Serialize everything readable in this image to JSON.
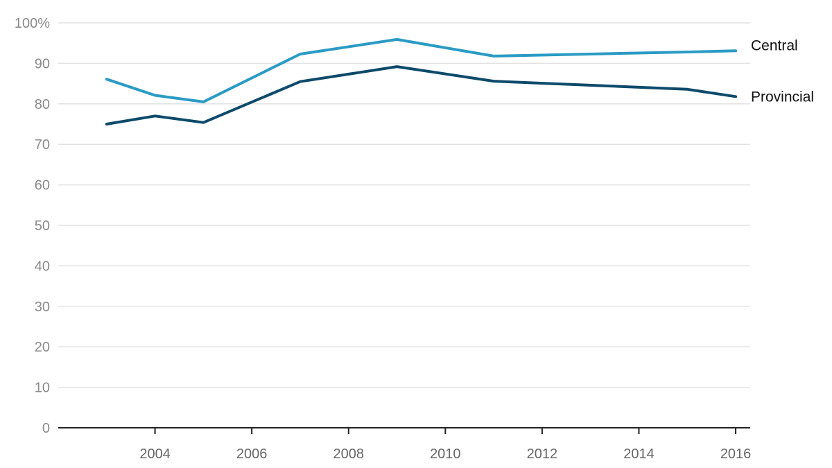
{
  "chart_data": {
    "type": "line",
    "title": "",
    "xlabel": "",
    "ylabel": "",
    "x": [
      2003,
      2004,
      2005,
      2007,
      2009,
      2011,
      2015,
      2016
    ],
    "xlim": [
      2002.0,
      2016.3
    ],
    "ylim": [
      0,
      100
    ],
    "x_ticks": [
      2004,
      2006,
      2008,
      2010,
      2012,
      2014,
      2016
    ],
    "y_ticks": [
      0,
      10,
      20,
      30,
      40,
      50,
      60,
      70,
      80,
      90,
      100
    ],
    "y_tick_labels": [
      "0",
      "10",
      "20",
      "30",
      "40",
      "50",
      "60",
      "70",
      "80",
      "90",
      "100%"
    ],
    "grid": true,
    "legend": "direct labels at right end of lines",
    "series": [
      {
        "name": "Central",
        "color": "#2a9bc4",
        "values": [
          86.1,
          82.1,
          80.5,
          92.3,
          95.9,
          91.8,
          92.8,
          93.1
        ]
      },
      {
        "name": "Provincial",
        "color": "#0d4a6b",
        "values": [
          75.0,
          77.0,
          75.4,
          85.5,
          89.2,
          85.6,
          83.6,
          81.8
        ]
      }
    ]
  }
}
